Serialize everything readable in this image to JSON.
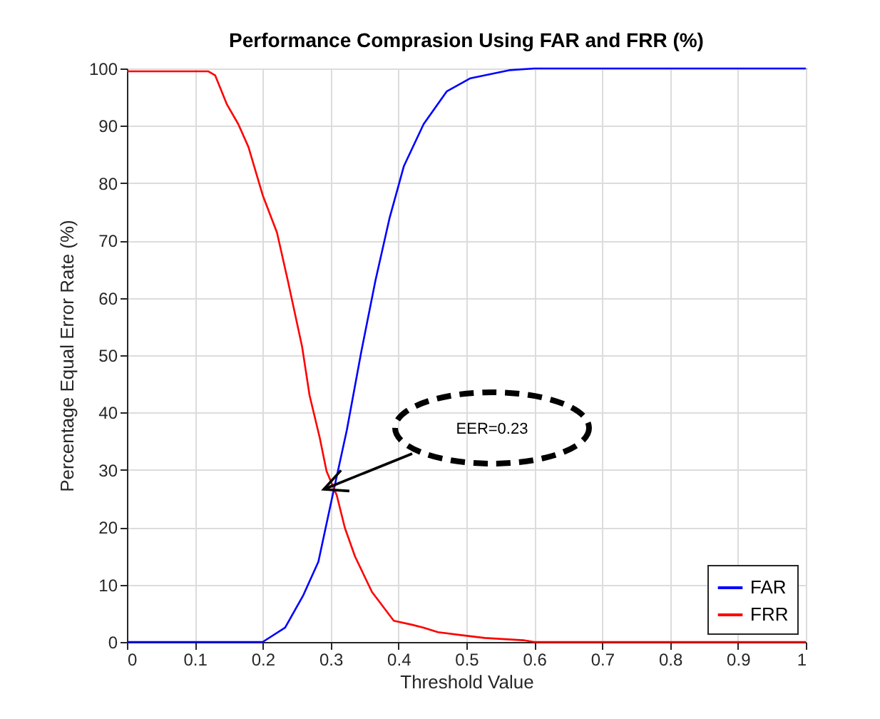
{
  "chart_data": {
    "type": "line",
    "title": "Performance Comprasion Using FAR and FRR (%)",
    "xlabel": "Threshold Value",
    "ylabel": "Percentage Equal Error Rate (%)",
    "xlim": [
      0,
      1
    ],
    "xticks": [
      0,
      0.1,
      0.2,
      0.3,
      0.4,
      0.5,
      0.6,
      0.7,
      0.8,
      0.9,
      1
    ],
    "ylim": [
      0,
      100
    ],
    "yticks": [
      0,
      10,
      20,
      30,
      40,
      50,
      60,
      70,
      80,
      90,
      100
    ],
    "grid": true,
    "legend": "bottom right",
    "line_style": "solid",
    "marker": "none",
    "annotations": [
      "EER=0.23"
    ],
    "series": [
      {
        "name": "FAR",
        "color": "#0000ff",
        "x": [
          0,
          0.2,
          0.233,
          0.26,
          0.282,
          0.303,
          0.324,
          0.345,
          0.366,
          0.387,
          0.408,
          0.437,
          0.471,
          0.506,
          0.563,
          0.6,
          1
        ],
        "values": [
          0,
          0,
          2.5,
          8.2,
          14,
          25.6,
          37,
          50.5,
          63,
          74,
          83,
          90.3,
          96,
          98.3,
          99.7,
          100,
          100
        ]
      },
      {
        "name": "FRR",
        "color": "#ff0000",
        "x": [
          0,
          0.12,
          0.13,
          0.147,
          0.164,
          0.179,
          0.2,
          0.221,
          0.237,
          0.258,
          0.269,
          0.284,
          0.294,
          0.309,
          0.321,
          0.336,
          0.361,
          0.372,
          0.393,
          0.42,
          0.437,
          0.458,
          0.492,
          0.527,
          0.584,
          0.6,
          1
        ],
        "values": [
          99.5,
          99.5,
          98.8,
          93.8,
          90.3,
          86.3,
          77.9,
          71.4,
          63,
          51.5,
          43,
          35.6,
          29.8,
          25.6,
          19.9,
          14.9,
          8.7,
          7,
          3.7,
          3,
          2.5,
          1.7,
          1.2,
          0.7,
          0.3,
          0,
          0
        ]
      }
    ]
  }
}
